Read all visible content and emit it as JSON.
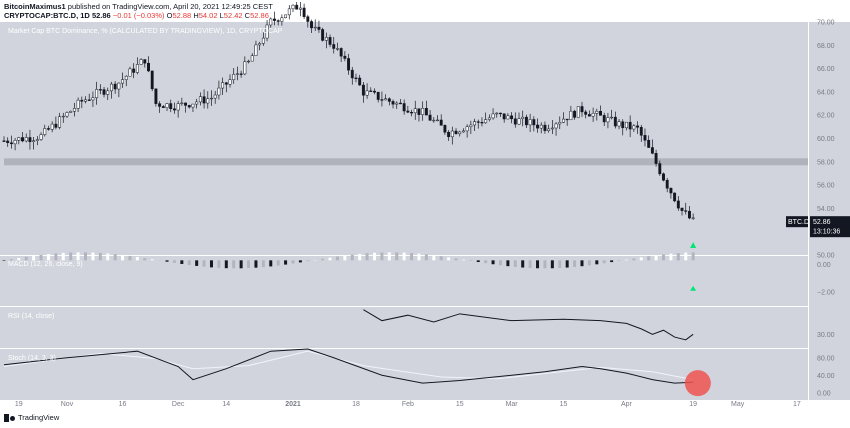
{
  "header": {
    "author": "BitcoinMaximus1",
    "published_text": "published on TradingView.com, April 20, 2021 12:49:25 CEST",
    "symbol": "CRYPTOCAP:BTC.D, 1D",
    "last_value": "52.86",
    "change": "−0.01 (−0.03%)",
    "open_label": "O",
    "open_value": "52.88",
    "high_label": "H",
    "high_value": "54.02",
    "low_label": "L",
    "low_value": "52.42",
    "close_label": "C",
    "close_value": "52.86"
  },
  "footer": {
    "brand": "TradingView"
  },
  "colors": {
    "background": "#d1d4dc",
    "candle": "#131722",
    "signal_arrow": "#00e676",
    "highlight_circle": "#ef5350",
    "macd_light_bars": "#b2b5be",
    "stoch_d_line": "#f0f3fa",
    "support_band": "#9598a1"
  },
  "chart_data": [
    {
      "type": "candlestick",
      "title": "Market Cap BTC Dominance, % (CALCULATED BY TRADINGVIEW), 1D, CRYPTOCAP",
      "ylim": [
        50,
        70
      ],
      "y_ticks": [
        "70.00",
        "68.00",
        "66.00",
        "64.00",
        "62.00",
        "60.00",
        "58.00",
        "56.00",
        "54.00",
        "52.00",
        "50.00"
      ],
      "x_tick_labels": [
        "19",
        "Nov",
        "16",
        "Dec",
        "14",
        "2021",
        "18",
        "Feb",
        "15",
        "Mar",
        "15",
        "Apr",
        "19",
        "May",
        "17"
      ],
      "support_band": [
        57.7,
        58.3
      ],
      "price_label": "BTC.D",
      "price_value": "52.86",
      "countdown": "13:10:36",
      "close_path": [
        [
          "2020-10-15",
          59.8
        ],
        [
          "2020-10-25",
          60.2
        ],
        [
          "2020-11-05",
          63.2
        ],
        [
          "2020-11-15",
          64.8
        ],
        [
          "2020-11-22",
          66.8
        ],
        [
          "2020-11-25",
          63.0
        ],
        [
          "2020-12-01",
          62.8
        ],
        [
          "2020-12-10",
          63.5
        ],
        [
          "2020-12-20",
          66.5
        ],
        [
          "2020-12-26",
          70.0
        ],
        [
          "2021-01-03",
          71.5
        ],
        [
          "2021-01-06",
          69.5
        ],
        [
          "2021-01-12",
          68.0
        ],
        [
          "2021-01-20",
          64.0
        ],
        [
          "2021-02-05",
          62.2
        ],
        [
          "2021-02-12",
          60.5
        ],
        [
          "2021-02-25",
          62.0
        ],
        [
          "2021-03-10",
          61.0
        ],
        [
          "2021-03-20",
          62.5
        ],
        [
          "2021-03-30",
          61.2
        ],
        [
          "2021-04-04",
          60.8
        ],
        [
          "2021-04-08",
          58.5
        ],
        [
          "2021-04-12",
          56.0
        ],
        [
          "2021-04-16",
          53.8
        ],
        [
          "2021-04-19",
          52.86
        ]
      ]
    },
    {
      "type": "histogram",
      "title": "MACD (12, 26, close, 9)",
      "y_ticks": [
        "0.00",
        "−2.00"
      ],
      "ylim": [
        -3,
        0.6
      ]
    },
    {
      "type": "line",
      "title": "RSI (14, close)",
      "y_ticks": [
        "30.00"
      ],
      "ylim": [
        20,
        50
      ],
      "values": [
        [
          "2021-01-20",
          48
        ],
        [
          "2021-01-25",
          40
        ],
        [
          "2021-02-01",
          44
        ],
        [
          "2021-02-08",
          39
        ],
        [
          "2021-02-15",
          45
        ],
        [
          "2021-03-01",
          40
        ],
        [
          "2021-03-15",
          41
        ],
        [
          "2021-03-25",
          40
        ],
        [
          "2021-04-01",
          38
        ],
        [
          "2021-04-05",
          34
        ],
        [
          "2021-04-08",
          30
        ],
        [
          "2021-04-11",
          33
        ],
        [
          "2021-04-14",
          28
        ],
        [
          "2021-04-17",
          26
        ],
        [
          "2021-04-19",
          30
        ]
      ]
    },
    {
      "type": "line",
      "title": "Stoch (14, 3, 3)",
      "y_ticks": [
        "80.00",
        "40.00",
        "0.00"
      ],
      "ylim": [
        0,
        100
      ],
      "series": [
        {
          "values": [
            [
              "2020-10-15",
              64
            ],
            [
              "2020-11-01",
              80
            ],
            [
              "2020-11-20",
              95
            ],
            [
              "2020-12-01",
              60
            ],
            [
              "2020-12-05",
              30
            ],
            [
              "2020-12-14",
              55
            ],
            [
              "2020-12-26",
              95
            ],
            [
              "2021-01-05",
              100
            ],
            [
              "2021-01-12",
              80
            ],
            [
              "2021-01-25",
              40
            ],
            [
              "2021-02-05",
              22
            ],
            [
              "2021-02-15",
              28
            ],
            [
              "2021-03-01",
              40
            ],
            [
              "2021-03-10",
              48
            ],
            [
              "2021-03-20",
              60
            ],
            [
              "2021-03-25",
              55
            ],
            [
              "2021-04-01",
              45
            ],
            [
              "2021-04-08",
              30
            ],
            [
              "2021-04-14",
              22
            ],
            [
              "2021-04-19",
              24
            ]
          ]
        },
        {
          "values": [
            [
              "2020-10-15",
              60
            ],
            [
              "2020-11-10",
              90
            ],
            [
              "2020-11-25",
              78
            ],
            [
              "2020-12-05",
              55
            ],
            [
              "2020-12-20",
              62
            ],
            [
              "2021-01-05",
              95
            ],
            [
              "2021-01-20",
              62
            ],
            [
              "2021-02-10",
              36
            ],
            [
              "2021-02-25",
              32
            ],
            [
              "2021-03-10",
              44
            ],
            [
              "2021-03-25",
              58
            ],
            [
              "2021-04-08",
              48
            ],
            [
              "2021-04-19",
              30
            ]
          ]
        }
      ]
    }
  ]
}
